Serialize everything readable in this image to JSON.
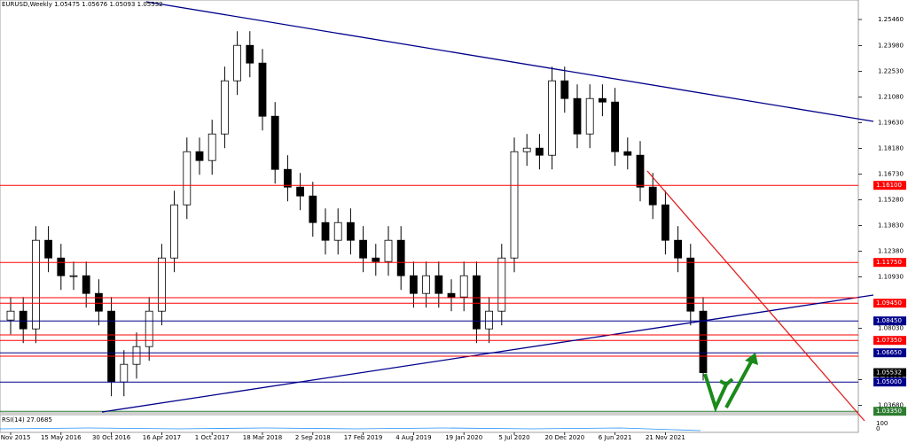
{
  "chart_data": {
    "type": "candlestick",
    "title": "EURUSD,Weekly",
    "quote": {
      "open": {
        "value": 1.05475,
        "label": "1.05475"
      },
      "high": {
        "value": 1.05676,
        "label": "1.05676"
      },
      "low": {
        "value": 1.05093,
        "label": "1.05093"
      },
      "close": {
        "value": 1.05532,
        "label": "1.05532"
      }
    },
    "categories": [
      "29 Nov 2015",
      null,
      null,
      null,
      "15 May 2016",
      null,
      null,
      null,
      "30 Oct 2016",
      null,
      null,
      null,
      "16 Apr 2017",
      null,
      null,
      null,
      "1 Oct 2017",
      null,
      null,
      null,
      "18 Mar 2018",
      null,
      null,
      null,
      "2 Sep 2018",
      null,
      null,
      null,
      "17 Feb 2019",
      null,
      null,
      null,
      "4 Aug 2019",
      null,
      null,
      null,
      "19 Jan 2020",
      null,
      null,
      null,
      "5 Jul 2020",
      null,
      null,
      null,
      "20 Dec 2020",
      null,
      null,
      null,
      "6 Jun 2021",
      null,
      null,
      null,
      "21 Nov 2021",
      null,
      null,
      null
    ],
    "open": [
      1.085,
      1.09,
      1.08,
      1.13,
      1.12,
      1.11,
      1.11,
      1.1,
      1.09,
      1.05,
      1.06,
      1.07,
      1.09,
      1.12,
      1.15,
      1.18,
      1.175,
      1.19,
      1.22,
      1.24,
      1.23,
      1.2,
      1.17,
      1.16,
      1.155,
      1.14,
      1.13,
      1.14,
      1.13,
      1.12,
      1.118,
      1.13,
      1.11,
      1.1,
      1.11,
      1.1,
      1.098,
      1.11,
      1.08,
      1.09,
      1.12,
      1.18,
      1.182,
      1.178,
      1.22,
      1.21,
      1.19,
      1.21,
      1.208,
      1.18,
      1.178,
      1.16,
      1.15,
      1.13,
      1.12,
      1.09
    ],
    "high": [
      1.098,
      1.098,
      1.138,
      1.138,
      1.128,
      1.118,
      1.118,
      1.108,
      1.098,
      1.068,
      1.078,
      1.098,
      1.128,
      1.158,
      1.188,
      1.188,
      1.198,
      1.228,
      1.248,
      1.248,
      1.238,
      1.208,
      1.178,
      1.168,
      1.163,
      1.148,
      1.148,
      1.148,
      1.138,
      1.128,
      1.138,
      1.138,
      1.118,
      1.118,
      1.118,
      1.108,
      1.118,
      1.118,
      1.098,
      1.128,
      1.188,
      1.19,
      1.19,
      1.228,
      1.228,
      1.218,
      1.218,
      1.218,
      1.216,
      1.188,
      1.186,
      1.168,
      1.158,
      1.138,
      1.128,
      1.098
    ],
    "low": [
      1.077,
      1.072,
      1.072,
      1.112,
      1.102,
      1.102,
      1.092,
      1.082,
      1.042,
      1.042,
      1.052,
      1.062,
      1.082,
      1.112,
      1.142,
      1.167,
      1.167,
      1.182,
      1.212,
      1.222,
      1.192,
      1.162,
      1.152,
      1.147,
      1.132,
      1.122,
      1.122,
      1.122,
      1.112,
      1.11,
      1.11,
      1.102,
      1.092,
      1.092,
      1.092,
      1.09,
      1.09,
      1.072,
      1.072,
      1.082,
      1.112,
      1.172,
      1.17,
      1.17,
      1.202,
      1.182,
      1.182,
      1.2,
      1.172,
      1.17,
      1.152,
      1.142,
      1.122,
      1.112,
      1.082,
      1.0509
    ],
    "close": [
      1.09,
      1.08,
      1.13,
      1.12,
      1.11,
      1.11,
      1.1,
      1.09,
      1.05,
      1.06,
      1.07,
      1.09,
      1.12,
      1.15,
      1.18,
      1.175,
      1.19,
      1.22,
      1.24,
      1.23,
      1.2,
      1.17,
      1.16,
      1.155,
      1.14,
      1.13,
      1.14,
      1.13,
      1.12,
      1.118,
      1.13,
      1.11,
      1.1,
      1.11,
      1.1,
      1.098,
      1.11,
      1.08,
      1.09,
      1.12,
      1.18,
      1.182,
      1.178,
      1.22,
      1.21,
      1.19,
      1.21,
      1.208,
      1.18,
      1.178,
      1.16,
      1.15,
      1.13,
      1.12,
      1.09,
      1.0553
    ],
    "ylim": [
      1.0326,
      1.2656
    ],
    "yticks": [
      {
        "value": 1.2546,
        "label": "1.25460"
      },
      {
        "value": 1.2398,
        "label": "1.23980"
      },
      {
        "value": 1.2253,
        "label": "1.22530"
      },
      {
        "value": 1.2108,
        "label": "1.21080"
      },
      {
        "value": 1.1963,
        "label": "1.19630"
      },
      {
        "value": 1.1818,
        "label": "1.18180"
      },
      {
        "value": 1.1673,
        "label": "1.16730"
      },
      {
        "value": 1.1528,
        "label": "1.15280"
      },
      {
        "value": 1.1383,
        "label": "1.13830"
      },
      {
        "value": 1.1238,
        "label": "1.12380"
      },
      {
        "value": 1.1093,
        "label": "1.10930"
      },
      {
        "value": 1.0803,
        "label": "1.08030"
      },
      {
        "value": 1.0513,
        "label": "1.05130"
      },
      {
        "value": 1.0368,
        "label": "1.03680"
      }
    ],
    "levels": [
      {
        "value": 1.161,
        "label": "1.16100",
        "color": "#ff0000"
      },
      {
        "value": 1.1175,
        "label": "1.11750",
        "color": "#ff0000"
      },
      {
        "value": 1.0945,
        "label": "1.09450",
        "color": "#ff0000"
      },
      {
        "value": 1.0845,
        "label": "1.08450",
        "color": "#00008b"
      },
      {
        "value": 1.0735,
        "label": "1.07350",
        "color": "#ff0000"
      },
      {
        "value": 1.0665,
        "label": "1.06650",
        "color": "#00008b"
      },
      {
        "value": 1.05532,
        "label": "1.05532",
        "color": "#000000"
      },
      {
        "value": 1.05,
        "label": "1.05000",
        "color": "#00008b"
      },
      {
        "value": 1.0335,
        "label": "1.03350",
        "color": "#2e7d32"
      }
    ],
    "rsi_label": "RSI(14) 27.0685",
    "rsi_ticks": [
      "100",
      "0"
    ]
  }
}
